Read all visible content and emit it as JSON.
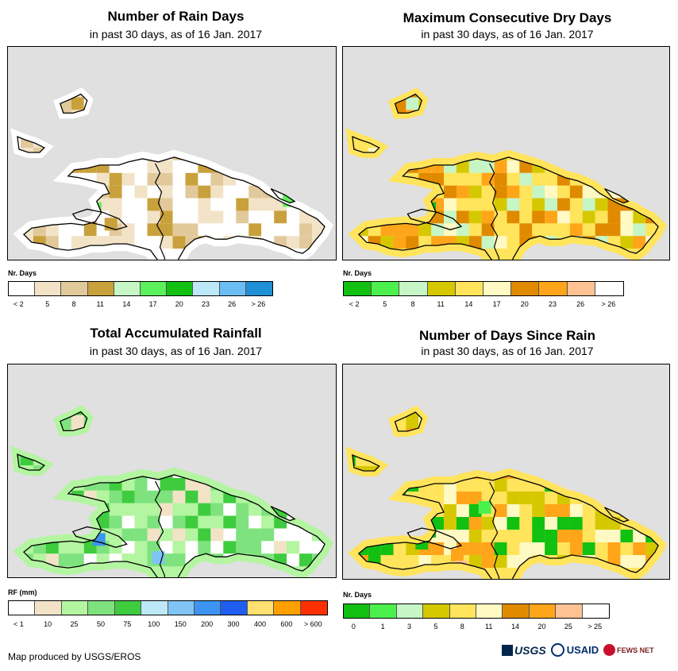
{
  "panels": [
    {
      "title": "Number of Rain Days",
      "subtitle": "in past 30 days, as of 16 Jan. 2017",
      "legend_title": "Nr. Days",
      "legend_labels": [
        "< 2",
        "5",
        "8",
        "11",
        "14",
        "17",
        "20",
        "23",
        "26",
        "> 26"
      ],
      "legend_colors": [
        "#ffffff",
        "#f2e3c7",
        "#e2c99b",
        "#c9a13c",
        "#c6f5c6",
        "#5cf05c",
        "#12c012",
        "#bde8f7",
        "#6dbdf5",
        "#1f8fd6"
      ]
    },
    {
      "title": "Maximum Consecutive Dry Days",
      "subtitle": "in past 30 days, as of 16 Jan. 2017",
      "legend_title": "Nr. Days",
      "legend_labels": [
        "< 2",
        "5",
        "8",
        "11",
        "14",
        "17",
        "20",
        "23",
        "26",
        "> 26"
      ],
      "legend_colors": [
        "#12c012",
        "#4cf04c",
        "#c6f5c6",
        "#d6c800",
        "#ffe45c",
        "#fff9c4",
        "#e08a00",
        "#ffa51a",
        "#ffc293",
        "#ffffff"
      ]
    },
    {
      "title": "Total Accumulated Rainfall",
      "subtitle": "in past 30 days, as of 16 Jan. 2017",
      "legend_title": "RF (mm)",
      "legend_labels": [
        "< 1",
        "10",
        "25",
        "50",
        "75",
        "100",
        "150",
        "200",
        "300",
        "400",
        "600",
        "> 600"
      ],
      "legend_colors": [
        "#ffffff",
        "#f2e3c7",
        "#b3f5a0",
        "#7ee27e",
        "#3ecc3e",
        "#bde8f7",
        "#7fc4f5",
        "#3c93f0",
        "#1f5ef0",
        "#ffe070",
        "#ffa000",
        "#ff3000"
      ]
    },
    {
      "title": "Number of Days Since Rain",
      "subtitle": "in past 30 days, as of 16 Jan. 2017",
      "legend_title": "Nr. Days",
      "legend_labels": [
        "0",
        "1",
        "3",
        "5",
        "8",
        "11",
        "14",
        "20",
        "25",
        "> 25"
      ],
      "legend_colors": [
        "#12c012",
        "#4cf04c",
        "#c6f5c6",
        "#d6c800",
        "#ffe45c",
        "#fff9c4",
        "#e08a00",
        "#ffa51a",
        "#ffc293",
        "#ffffff"
      ]
    }
  ],
  "footer": "Map produced by USGS/EROS",
  "logos": {
    "usgs": "USGS",
    "usaid": "USAID",
    "fews": "FEWS NET"
  },
  "colors": {
    "background": "#e0e0e0",
    "island_base": [
      "#ffffff",
      "#ffe45c",
      "#c6f5c6",
      "#ffe45c"
    ]
  }
}
